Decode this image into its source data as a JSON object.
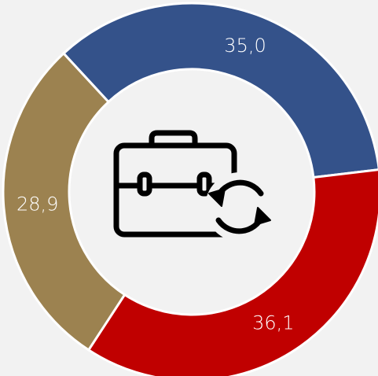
{
  "chart_data": {
    "type": "donut",
    "values": [
      35.0,
      36.1,
      28.9
    ],
    "value_labels": [
      "35,0",
      "36,1",
      "28,9"
    ],
    "colors": [
      "#34528a",
      "#c00000",
      "#9c8250"
    ]
  }
}
